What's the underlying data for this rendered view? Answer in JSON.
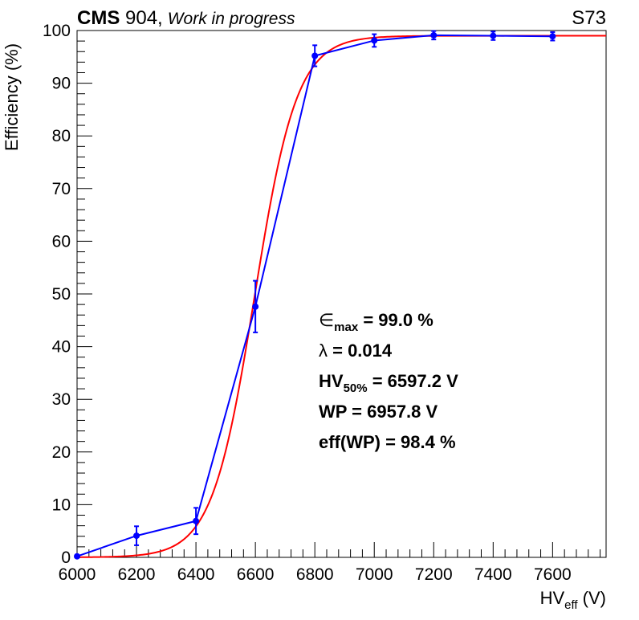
{
  "header": {
    "cms": "CMS",
    "facility": " 904,",
    "status": "Work in progress",
    "chamber": "S73"
  },
  "chart_data": {
    "type": "scatter",
    "xlim": [
      6000,
      7780
    ],
    "ylim": [
      0,
      100
    ],
    "x_ticks": [
      6000,
      6200,
      6400,
      6600,
      6800,
      7000,
      7200,
      7400,
      7600
    ],
    "y_ticks": [
      0,
      10,
      20,
      30,
      40,
      50,
      60,
      70,
      80,
      90,
      100
    ],
    "x_tick_labels": [
      "6000",
      "6200",
      "6400",
      "6600",
      "6800",
      "7000",
      "7200",
      "7400",
      "7600"
    ],
    "y_tick_labels": [
      "0",
      "10",
      "20",
      "30",
      "40",
      "50",
      "60",
      "70",
      "80",
      "90",
      "100"
    ],
    "xlabel": {
      "main": "HV",
      "sub": "eff",
      "unit": " (V)"
    },
    "ylabel": "Efficiency (%)",
    "grid": false,
    "series": [
      {
        "kind": "data",
        "color": "#0000ff",
        "x": [
          6000,
          6200,
          6400,
          6600,
          6800,
          7000,
          7200,
          7400,
          7600
        ],
        "y": [
          0.2,
          4.1,
          6.9,
          47.6,
          95.2,
          98.1,
          99.1,
          99.0,
          98.9
        ],
        "err": [
          0.2,
          1.8,
          2.5,
          4.9,
          2.0,
          1.2,
          0.8,
          0.8,
          0.8
        ]
      },
      {
        "kind": "fit",
        "color": "#ff0000",
        "emax": 99.0,
        "lambda": 0.014,
        "hv50": 6597.2
      }
    ],
    "annotations": [
      {
        "main": "∈",
        "sub": "max",
        "rest": " = 99.0 %"
      },
      {
        "main": "λ",
        "sub": "",
        "rest": " = 0.014"
      },
      {
        "main": "HV",
        "sub": "50%",
        "rest": " = 6597.2 V"
      },
      {
        "main": "WP",
        "sub": "",
        "rest": " = 6957.8 V"
      },
      {
        "main": "eff(WP)",
        "sub": "",
        "rest": " = 98.4 %"
      }
    ]
  }
}
